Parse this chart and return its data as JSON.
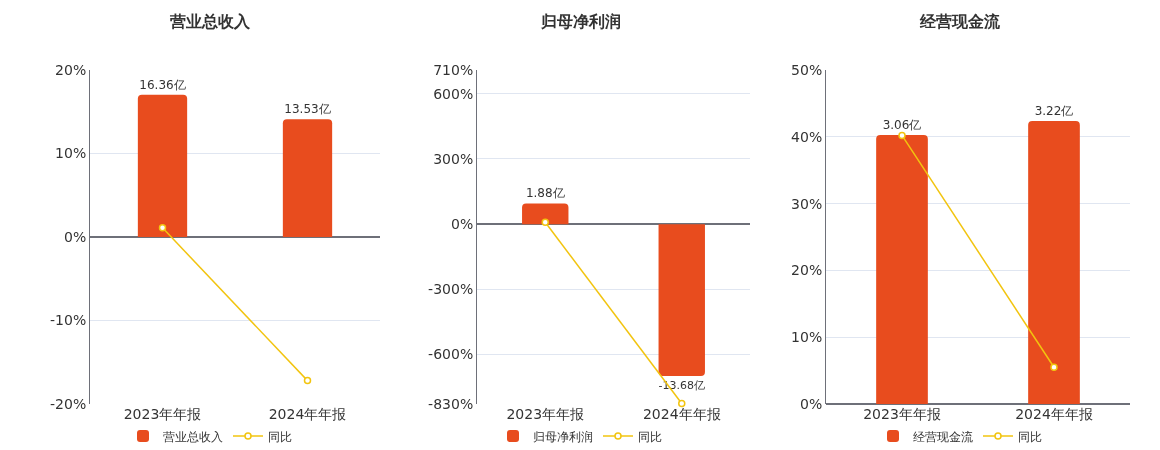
{
  "chart_data": [
    {
      "type": "bar",
      "title": "营业总收入",
      "categories": [
        "2023年年报",
        "2024年年报"
      ],
      "series": [
        {
          "name": "营业总收入",
          "axis": "y2",
          "color": "#e84c1e",
          "values": [
            16.36,
            13.53
          ],
          "value_labels": [
            "16.36亿",
            "13.53亿"
          ]
        },
        {
          "name": "同比",
          "type": "line",
          "color": "#f2c40f",
          "values": [
            1.1,
            -17.2
          ]
        }
      ],
      "ylim": [
        -20,
        20
      ],
      "yticks": [
        {
          "value": -20,
          "label": "-20%"
        },
        {
          "value": -10,
          "label": "-10%"
        },
        {
          "value": 0,
          "label": "0%"
        },
        {
          "value": 10,
          "label": "10%"
        },
        {
          "value": 20,
          "label": "20%"
        }
      ],
      "y2lim": [
        -19.2,
        19.2
      ],
      "grid": "y",
      "legend": "bottom",
      "marker": "circle"
    },
    {
      "type": "bar",
      "title": "归母净利润",
      "categories": [
        "2023年年报",
        "2024年年报"
      ],
      "series": [
        {
          "name": "归母净利润",
          "axis": "y2",
          "color": "#e84c1e",
          "values": [
            1.88,
            -13.68
          ],
          "value_labels": [
            "1.88亿",
            "-13.68亿"
          ]
        },
        {
          "name": "同比",
          "type": "line",
          "color": "#f2c40f",
          "values": [
            8,
            -828
          ]
        }
      ],
      "ylim": [
        -830,
        710
      ],
      "yticks": [
        {
          "value": -830,
          "label": "-830%"
        },
        {
          "value": -600,
          "label": "-600%"
        },
        {
          "value": -300,
          "label": "-300%"
        },
        {
          "value": 0,
          "label": "0%"
        },
        {
          "value": 300,
          "label": "300%"
        },
        {
          "value": 600,
          "label": "600%"
        },
        {
          "value": 710,
          "label": "710%"
        }
      ],
      "y2lim": [
        -16.2,
        13.9
      ],
      "grid": "y",
      "legend": "bottom",
      "marker": "circle"
    },
    {
      "type": "bar",
      "title": "经营现金流",
      "categories": [
        "2023年年报",
        "2024年年报"
      ],
      "series": [
        {
          "name": "经营现金流",
          "axis": "y2",
          "color": "#e84c1e",
          "values": [
            3.06,
            3.22
          ],
          "value_labels": [
            "3.06亿",
            "3.22亿"
          ]
        },
        {
          "name": "同比",
          "type": "line",
          "color": "#f2c40f",
          "values": [
            40.2,
            5.5
          ]
        }
      ],
      "ylim": [
        0,
        50
      ],
      "yticks": [
        {
          "value": 0,
          "label": "0%"
        },
        {
          "value": 10,
          "label": "10%"
        },
        {
          "value": 20,
          "label": "20%"
        },
        {
          "value": 30,
          "label": "30%"
        },
        {
          "value": 40,
          "label": "40%"
        },
        {
          "value": 50,
          "label": "50%"
        }
      ],
      "y2lim": [
        0,
        3.8
      ],
      "grid": "y",
      "legend": "bottom",
      "marker": "circle"
    }
  ]
}
